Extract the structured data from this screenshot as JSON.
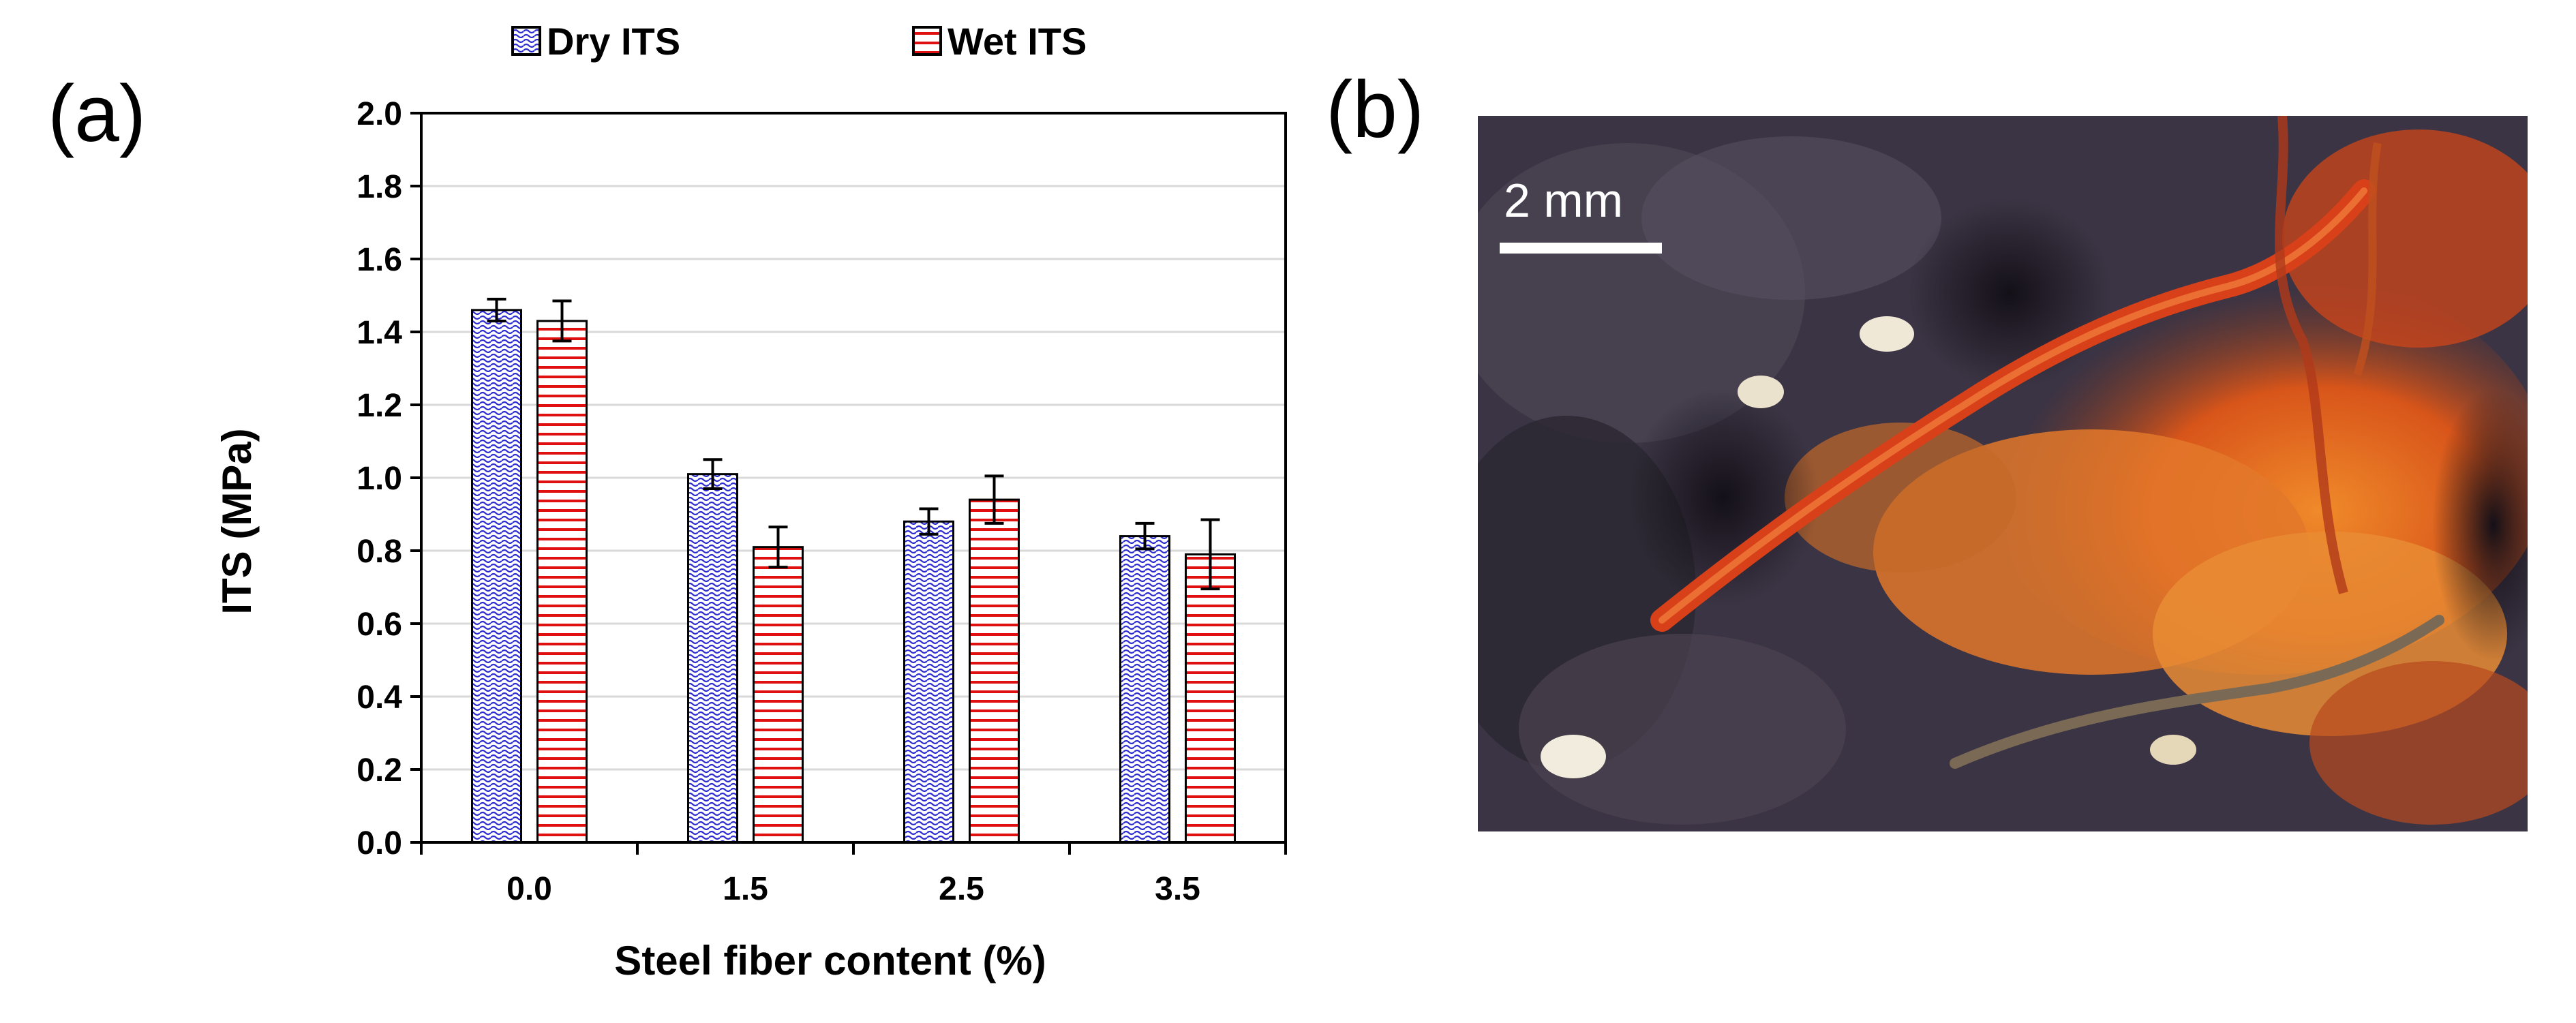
{
  "panels": {
    "a": "(a)",
    "b": "(b)"
  },
  "chart_data": {
    "type": "bar",
    "title": "",
    "xlabel": "Steel fiber content (%)",
    "ylabel": "ITS (MPa)",
    "ylim": [
      0,
      2.0
    ],
    "ytick_step": 0.2,
    "yticks": [
      "0.0",
      "0.2",
      "0.4",
      "0.6",
      "0.8",
      "1.0",
      "1.2",
      "1.4",
      "1.6",
      "1.8",
      "2.0"
    ],
    "categories": [
      "0.0",
      "1.5",
      "2.5",
      "3.5"
    ],
    "grid": true,
    "legend_position": "top",
    "series": [
      {
        "name": "Dry ITS",
        "values": [
          1.46,
          1.01,
          0.88,
          0.84
        ],
        "errors": [
          0.03,
          0.04,
          0.035,
          0.035
        ],
        "color": "#2b2bcf",
        "pattern": "wave"
      },
      {
        "name": "Wet ITS",
        "values": [
          1.43,
          0.81,
          0.94,
          0.79
        ],
        "errors": [
          0.055,
          0.055,
          0.065,
          0.095
        ],
        "color": "#e01010",
        "pattern": "horizontal-lines"
      }
    ]
  },
  "photo": {
    "scale_bar_label": "2 mm"
  },
  "colors": {
    "grid": "#d9d9d9",
    "axis": "#000000",
    "fiber_rust": "#e0601a",
    "asphalt": "#3a3440"
  }
}
